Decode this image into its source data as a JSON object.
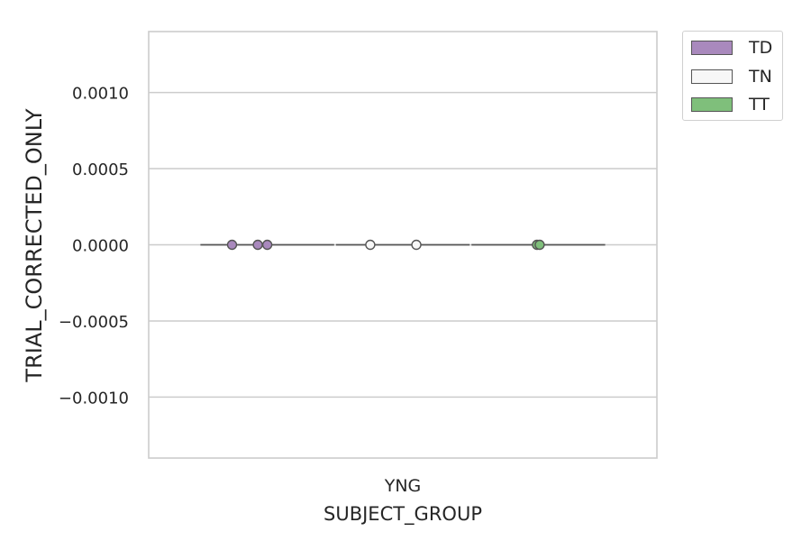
{
  "chart_data": {
    "type": "strip",
    "title": "",
    "xlabel": "SUBJECT_GROUP",
    "ylabel": "TRIAL_CORRECTED_ONLY",
    "categories": [
      "YNG"
    ],
    "ylim": [
      -0.0014,
      0.0014
    ],
    "yticks": [
      0.001,
      0.0005,
      0.0,
      -0.0005,
      -0.001
    ],
    "ytick_labels": [
      "0.0010",
      "0.0005",
      "0.0000",
      "−0.0005",
      "−0.0010"
    ],
    "grid": "horizontal",
    "legend_position": "outside-top-right",
    "series": [
      {
        "name": "TD",
        "color": "#a989bd",
        "values": [
          0.0,
          0.0,
          0.0
        ]
      },
      {
        "name": "TN",
        "color": "#f7f7f7",
        "values": [
          0.0,
          0.0
        ]
      },
      {
        "name": "TT",
        "color": "#7fbf7b",
        "values": [
          0.0,
          0.0
        ]
      }
    ]
  }
}
